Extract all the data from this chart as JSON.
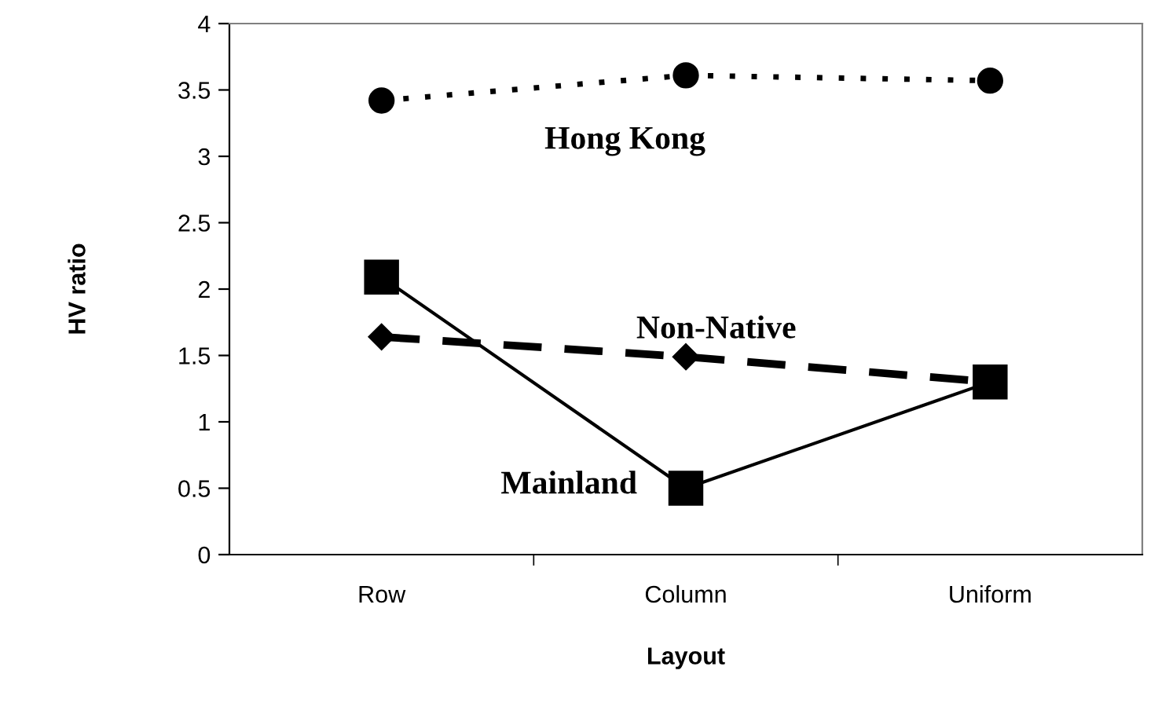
{
  "chart_data": {
    "type": "line",
    "xlabel": "Layout",
    "ylabel": "HV ratio",
    "categories": [
      "Row",
      "Column",
      "Uniform"
    ],
    "series": [
      {
        "name": "Hong Kong",
        "color": "#000000",
        "values": [
          3.42,
          3.61,
          3.57
        ],
        "marker": "circle",
        "line_style": "dotted"
      },
      {
        "name": "Mainland",
        "color": "#000000",
        "values": [
          2.09,
          0.5,
          1.3
        ],
        "marker": "square",
        "line_style": "solid"
      },
      {
        "name": "Non-Native",
        "color": "#000000",
        "values": [
          1.64,
          1.49,
          1.3
        ],
        "marker": "diamond",
        "line_style": "dashed"
      }
    ],
    "ylim": [
      0,
      4
    ],
    "yticks": [
      0,
      0.5,
      1,
      1.5,
      2,
      2.5,
      3,
      3.5,
      4
    ],
    "grid": false,
    "legend": false
  }
}
